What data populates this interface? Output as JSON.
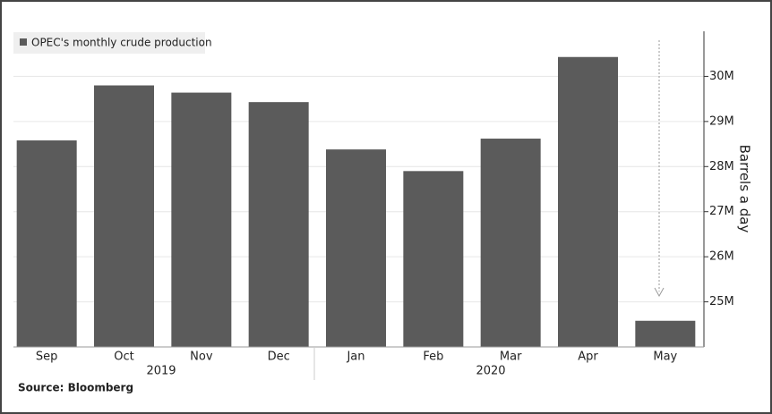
{
  "chart_data": {
    "type": "bar",
    "legend_label": "OPEC's monthly crude production",
    "y_axis_label": "Barrels a day",
    "source": "Source: Bloomberg",
    "categories": [
      "Sep",
      "Oct",
      "Nov",
      "Dec",
      "Jan",
      "Feb",
      "Mar",
      "Apr",
      "May"
    ],
    "year_labels": [
      "2019",
      "2020"
    ],
    "values": [
      28.58,
      29.8,
      29.64,
      29.43,
      28.38,
      27.9,
      28.62,
      30.43,
      24.58
    ],
    "color": "#5b5b5b",
    "ylim": [
      24,
      31
    ],
    "yticks": [
      {
        "value": 25,
        "label": "25M"
      },
      {
        "value": 26,
        "label": "26M"
      },
      {
        "value": 27,
        "label": "27M"
      },
      {
        "value": 28,
        "label": "28M"
      },
      {
        "value": 29,
        "label": "29M"
      },
      {
        "value": 30,
        "label": "30M"
      }
    ],
    "grid": true
  }
}
